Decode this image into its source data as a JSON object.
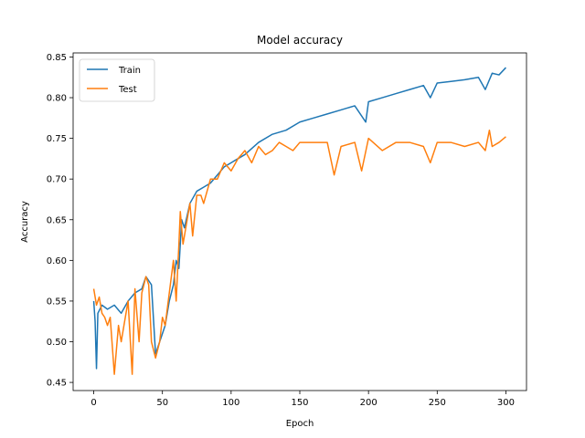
{
  "chart_data": {
    "type": "line",
    "title": "Model accuracy",
    "xlabel": "Epoch",
    "ylabel": "Accuracy",
    "xlim": [
      -15,
      315
    ],
    "ylim": [
      0.44,
      0.855
    ],
    "xticks": [
      0,
      50,
      100,
      150,
      200,
      250,
      300
    ],
    "yticks": [
      0.45,
      0.5,
      0.55,
      0.6,
      0.65,
      0.7,
      0.75,
      0.8,
      0.85
    ],
    "legend_position": "top-left",
    "grid": false,
    "series": [
      {
        "name": "Train",
        "color": "#1f77b4",
        "points": [
          [
            0,
            0.55
          ],
          [
            1,
            0.525
          ],
          [
            2,
            0.467
          ],
          [
            3,
            0.535
          ],
          [
            6,
            0.545
          ],
          [
            10,
            0.54
          ],
          [
            15,
            0.545
          ],
          [
            20,
            0.535
          ],
          [
            25,
            0.55
          ],
          [
            30,
            0.56
          ],
          [
            35,
            0.565
          ],
          [
            38,
            0.58
          ],
          [
            42,
            0.57
          ],
          [
            45,
            0.485
          ],
          [
            48,
            0.5
          ],
          [
            52,
            0.52
          ],
          [
            55,
            0.55
          ],
          [
            58,
            0.57
          ],
          [
            60,
            0.6
          ],
          [
            62,
            0.59
          ],
          [
            64,
            0.65
          ],
          [
            66,
            0.64
          ],
          [
            70,
            0.67
          ],
          [
            75,
            0.685
          ],
          [
            80,
            0.69
          ],
          [
            85,
            0.695
          ],
          [
            90,
            0.705
          ],
          [
            95,
            0.715
          ],
          [
            100,
            0.72
          ],
          [
            110,
            0.73
          ],
          [
            120,
            0.745
          ],
          [
            130,
            0.755
          ],
          [
            140,
            0.76
          ],
          [
            150,
            0.77
          ],
          [
            160,
            0.775
          ],
          [
            170,
            0.78
          ],
          [
            180,
            0.785
          ],
          [
            190,
            0.79
          ],
          [
            198,
            0.77
          ],
          [
            200,
            0.795
          ],
          [
            210,
            0.8
          ],
          [
            220,
            0.805
          ],
          [
            230,
            0.81
          ],
          [
            240,
            0.815
          ],
          [
            245,
            0.8
          ],
          [
            250,
            0.818
          ],
          [
            260,
            0.82
          ],
          [
            270,
            0.822
          ],
          [
            280,
            0.825
          ],
          [
            285,
            0.81
          ],
          [
            290,
            0.83
          ],
          [
            295,
            0.828
          ],
          [
            300,
            0.837
          ]
        ]
      },
      {
        "name": "Test",
        "color": "#ff7f0e",
        "points": [
          [
            0,
            0.565
          ],
          [
            2,
            0.545
          ],
          [
            4,
            0.555
          ],
          [
            6,
            0.535
          ],
          [
            8,
            0.53
          ],
          [
            10,
            0.52
          ],
          [
            12,
            0.53
          ],
          [
            15,
            0.46
          ],
          [
            18,
            0.52
          ],
          [
            20,
            0.5
          ],
          [
            22,
            0.52
          ],
          [
            25,
            0.55
          ],
          [
            28,
            0.46
          ],
          [
            30,
            0.565
          ],
          [
            33,
            0.5
          ],
          [
            35,
            0.56
          ],
          [
            38,
            0.58
          ],
          [
            40,
            0.57
          ],
          [
            42,
            0.5
          ],
          [
            45,
            0.48
          ],
          [
            48,
            0.5
          ],
          [
            50,
            0.53
          ],
          [
            52,
            0.52
          ],
          [
            55,
            0.56
          ],
          [
            58,
            0.6
          ],
          [
            60,
            0.55
          ],
          [
            62,
            0.62
          ],
          [
            63,
            0.66
          ],
          [
            65,
            0.62
          ],
          [
            67,
            0.64
          ],
          [
            70,
            0.67
          ],
          [
            72,
            0.63
          ],
          [
            75,
            0.68
          ],
          [
            78,
            0.68
          ],
          [
            80,
            0.67
          ],
          [
            85,
            0.7
          ],
          [
            90,
            0.7
          ],
          [
            95,
            0.72
          ],
          [
            100,
            0.71
          ],
          [
            105,
            0.725
          ],
          [
            110,
            0.735
          ],
          [
            115,
            0.72
          ],
          [
            120,
            0.74
          ],
          [
            125,
            0.73
          ],
          [
            130,
            0.735
          ],
          [
            135,
            0.745
          ],
          [
            140,
            0.74
          ],
          [
            145,
            0.735
          ],
          [
            150,
            0.745
          ],
          [
            160,
            0.745
          ],
          [
            170,
            0.745
          ],
          [
            175,
            0.705
          ],
          [
            180,
            0.74
          ],
          [
            190,
            0.745
          ],
          [
            195,
            0.71
          ],
          [
            200,
            0.75
          ],
          [
            210,
            0.735
          ],
          [
            220,
            0.745
          ],
          [
            230,
            0.745
          ],
          [
            240,
            0.74
          ],
          [
            245,
            0.72
          ],
          [
            250,
            0.745
          ],
          [
            260,
            0.745
          ],
          [
            270,
            0.74
          ],
          [
            280,
            0.745
          ],
          [
            285,
            0.735
          ],
          [
            288,
            0.76
          ],
          [
            290,
            0.74
          ],
          [
            295,
            0.745
          ],
          [
            300,
            0.752
          ]
        ]
      }
    ]
  }
}
